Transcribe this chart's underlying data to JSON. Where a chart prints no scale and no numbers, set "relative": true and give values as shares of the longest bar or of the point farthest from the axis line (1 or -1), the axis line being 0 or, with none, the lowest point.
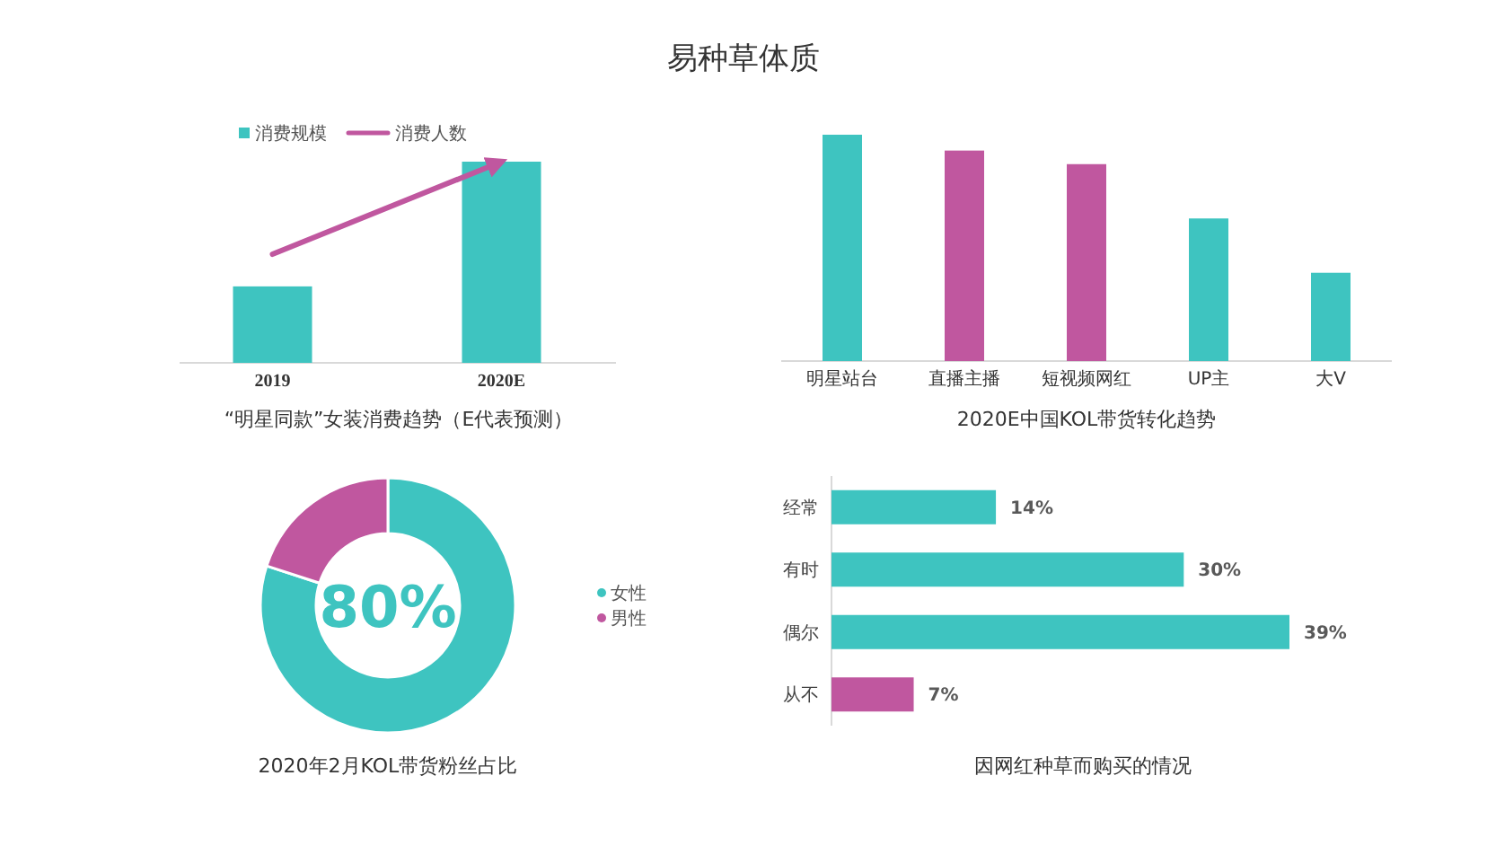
{
  "chart_data": [
    {
      "type": "other",
      "title": "易种草体质"
    },
    {
      "type": "bar",
      "title": "“明星同款”女装消费趋势（E代表预测）",
      "categories": [
        "2019",
        "2020E"
      ],
      "relative": true,
      "legend": "top left",
      "series": [
        {
          "name": "消费规模",
          "color": "#3ec4c0",
          "values": [
            0.38,
            1
          ]
        },
        {
          "name": "消费人数",
          "type": "line",
          "color": "#c0579f",
          "values": [
            0.54,
            1
          ]
        }
      ]
    },
    {
      "type": "bar",
      "title": "2020E中国KOL带货转化趋势",
      "categories": [
        "明星站台",
        "直播主播",
        "短视频网红",
        "UP主",
        "大V"
      ],
      "relative": true,
      "values": [
        1,
        0.93,
        0.87,
        0.63,
        0.39
      ],
      "colors": [
        "#3ec4c0",
        "#c0579f",
        "#c0579f",
        "#3ec4c0",
        "#3ec4c0"
      ]
    },
    {
      "type": "donut",
      "title": "2020年2月KOL带货粉丝占比",
      "categories": [
        "女性",
        "男性"
      ],
      "values": [
        80,
        20
      ],
      "colors": [
        "#3ec4c0",
        "#c0579f"
      ],
      "legend": "right",
      "annotations": [
        "80%"
      ]
    },
    {
      "type": "bar",
      "orientation": "horizontal",
      "title": "因网红种草而购买的情况",
      "categories": [
        "经常",
        "有时",
        "偶尔",
        "从不"
      ],
      "values": [
        14,
        30,
        39,
        7
      ],
      "colors": [
        "#3ec4c0",
        "#3ec4c0",
        "#3ec4c0",
        "#c0579f"
      ],
      "value_labels": [
        "14%",
        "30%",
        "39%",
        "7%"
      ]
    }
  ]
}
